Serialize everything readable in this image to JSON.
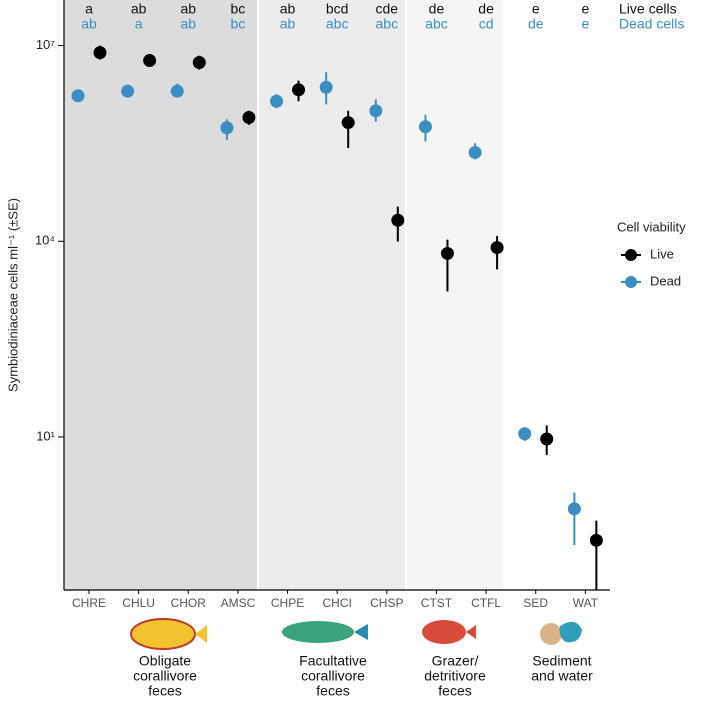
{
  "chart_data": {
    "type": "dotplot",
    "y_label": "Symbiodiniaceae cells ml⁻¹ (±SE)",
    "log_y": true,
    "ylim": [
      0.045,
      50000000
    ],
    "yticks": [
      {
        "value": 10,
        "label": "10¹"
      },
      {
        "value": 10000,
        "label": "10⁴"
      },
      {
        "value": 10000000,
        "label": "10⁷"
      }
    ],
    "categories": [
      "CHRE",
      "CHLU",
      "CHOR",
      "AMSC",
      "CHPE",
      "CHCI",
      "CHSP",
      "CTST",
      "CTFL",
      "SED",
      "WAT"
    ],
    "legend_title": "Cell viability",
    "series": [
      {
        "name": "Live",
        "color": "#000000",
        "values": [
          7800000,
          5900000,
          5500000,
          790000,
          2100000,
          660000,
          21000,
          6500,
          8000,
          9.3,
          0.26
        ],
        "low": [
          6100000,
          4800000,
          4300000,
          610000,
          1400000,
          270000,
          9900,
          1700,
          3700,
          5.3,
          0.045
        ],
        "high": [
          10000000,
          7300000,
          7000000,
          1000000,
          2900000,
          1000000,
          34000,
          10600,
          12000,
          15,
          0.52
        ],
        "letters_title": "Live cells",
        "letters": [
          "a",
          "ab",
          "ab",
          "bc",
          "ab",
          "bcd",
          "cde",
          "de",
          "de",
          "e",
          "e"
        ]
      },
      {
        "name": "Dead",
        "color": "#3a8ec2",
        "values": [
          1700000,
          2000000,
          2000000,
          550000,
          1400000,
          2300000,
          1000000,
          570000,
          230000,
          11.2,
          0.79
        ],
        "low": [
          1400000,
          1600000,
          1600000,
          360000,
          1100000,
          1250000,
          680000,
          340000,
          180000,
          8.7,
          0.22
        ],
        "high": [
          2100000,
          2400000,
          2600000,
          740000,
          1800000,
          3900000,
          1500000,
          870000,
          320000,
          14,
          1.4
        ],
        "letters_title": "Dead cells",
        "letters": [
          "ab",
          "a",
          "ab",
          "bc",
          "ab",
          "abc",
          "abc",
          "abc",
          "cd",
          "de",
          "e"
        ]
      }
    ],
    "groups": [
      {
        "label": [
          "Obligate",
          "corallivore",
          "feces"
        ]
      },
      {
        "label": [
          "Facultative",
          "corallivore",
          "feces"
        ]
      },
      {
        "label": [
          "Grazer/",
          "detritivore",
          "feces"
        ]
      },
      {
        "label": [
          "Sediment",
          "and water"
        ]
      }
    ]
  }
}
